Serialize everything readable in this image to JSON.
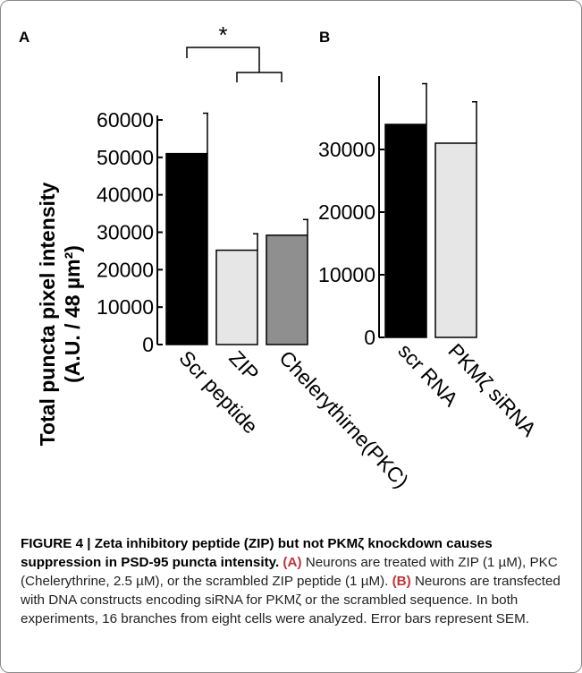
{
  "figure": {
    "shared_ylabel_line1": "Total puncta pixel intensity",
    "shared_ylabel_line2": "(A.U. / 48 µm²)"
  },
  "caption": {
    "title": "FIGURE 4 | Zeta inhibitory peptide (ZIP) but not PKMζ knockdown causes suppression in PSD-95 puncta intensity.",
    "label_a": "(A)",
    "text_a": " Neurons are treated with ZIP (1 µM), PKC (Chelerythrine, 2.5 µM), or the scrambled ZIP peptide (1 µM). ",
    "label_b": "(B)",
    "text_b": " Neurons are transfected with DNA constructs encoding siRNA for PKMζ or the scrambled sequence. In both experiments, 16 branches from eight cells were analyzed. Error bars represent SEM."
  },
  "chart_data": [
    {
      "panel": "A",
      "type": "bar",
      "categories": [
        "Scr peptide",
        "ZIP",
        "Chelerythirne(PKC)"
      ],
      "values": [
        51000,
        25200,
        29200
      ],
      "errors": [
        10800,
        4400,
        4200
      ],
      "bar_colors": [
        "#000000",
        "#e6e6e6",
        "#8f8f8f"
      ],
      "yticks": [
        0,
        10000,
        20000,
        30000,
        40000,
        50000,
        60000
      ],
      "ylim": [
        0,
        60000
      ],
      "annotation": "*",
      "xlabel": "",
      "ylabel": "Total puncta pixel intensity (A.U. / 48 µm²)"
    },
    {
      "panel": "B",
      "type": "bar",
      "categories": [
        "scr RNA",
        "PKMζ siRNA"
      ],
      "values": [
        34000,
        31000
      ],
      "errors": [
        6500,
        6600
      ],
      "bar_colors": [
        "#000000",
        "#e6e6e6"
      ],
      "yticks": [
        0,
        10000,
        20000,
        30000
      ],
      "ylim": [
        0,
        40000
      ],
      "xlabel": "",
      "ylabel": ""
    }
  ]
}
